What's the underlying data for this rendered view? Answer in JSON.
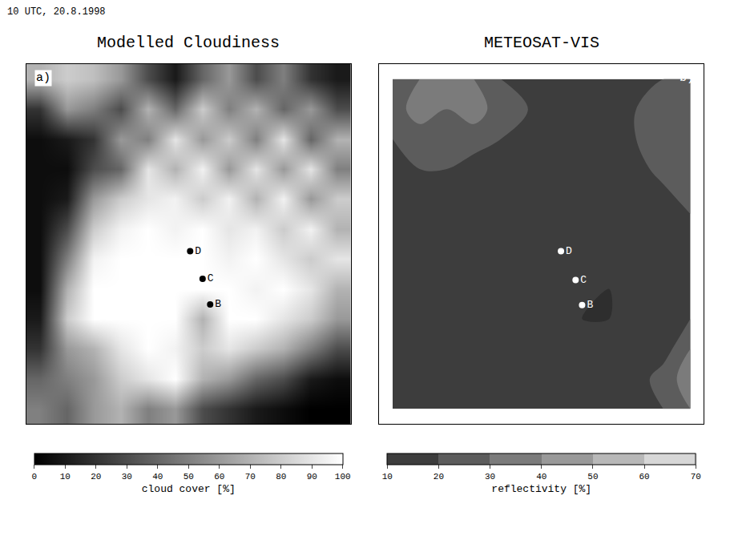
{
  "title": "10 UTC, 20.8.1998",
  "chart_data": [
    {
      "type": "heatmap",
      "title": "Modelled Cloudiness",
      "label": "a)",
      "x": [
        0.5,
        1.5,
        2.5,
        3.5,
        4.5,
        5.5,
        6.5,
        7.5,
        8.5,
        9.5,
        10.5,
        11.5
      ],
      "y": [
        11.5,
        10.5,
        9.5,
        8.5,
        7.5,
        6.5,
        5.5,
        4.5,
        3.5,
        2.5,
        1.5,
        0.5
      ],
      "z": [
        [
          70,
          80,
          75,
          60,
          30,
          10,
          40,
          60,
          30,
          50,
          20,
          10
        ],
        [
          20,
          60,
          50,
          30,
          70,
          40,
          80,
          50,
          70,
          40,
          60,
          30
        ],
        [
          5,
          10,
          20,
          60,
          50,
          90,
          60,
          80,
          50,
          90,
          40,
          70
        ],
        [
          5,
          5,
          30,
          40,
          90,
          70,
          95,
          60,
          90,
          60,
          90,
          50
        ],
        [
          5,
          10,
          60,
          80,
          90,
          95,
          80,
          95,
          70,
          95,
          60,
          80
        ],
        [
          5,
          30,
          80,
          95,
          100,
          95,
          100,
          90,
          95,
          80,
          95,
          70
        ],
        [
          5,
          50,
          95,
          100,
          100,
          100,
          100,
          95,
          100,
          90,
          80,
          90
        ],
        [
          5,
          70,
          100,
          100,
          100,
          100,
          100,
          100,
          95,
          100,
          90,
          70
        ],
        [
          10,
          80,
          100,
          100,
          100,
          100,
          70,
          100,
          100,
          90,
          80,
          60
        ],
        [
          20,
          60,
          70,
          90,
          100,
          95,
          80,
          90,
          80,
          70,
          50,
          30
        ],
        [
          40,
          50,
          60,
          80,
          90,
          100,
          70,
          60,
          40,
          30,
          10,
          5
        ],
        [
          50,
          40,
          60,
          70,
          50,
          60,
          30,
          20,
          10,
          5,
          0,
          0
        ]
      ],
      "xlim": [
        0,
        12
      ],
      "ylim": [
        0,
        12
      ],
      "tick_labels": false,
      "points": {
        "names": [
          "D",
          "C",
          "B"
        ],
        "x": [
          6.06,
          6.52,
          6.8
        ],
        "y": [
          5.76,
          4.84,
          3.98
        ]
      },
      "colorbar": {
        "title": "cloud cover [%]",
        "range": [
          0,
          100
        ],
        "ticks": [
          0,
          10,
          20,
          30,
          40,
          50,
          60,
          70,
          80,
          90,
          100
        ]
      }
    },
    {
      "type": "contour",
      "title": "METEOSAT-VIS",
      "label": "b)",
      "x": [
        0.5,
        1.5,
        2.5,
        3.5,
        4.5,
        5.5,
        6.5,
        7.5,
        8.5,
        9.5,
        10.5,
        11.5
      ],
      "y": [
        11.5,
        10.5,
        9.5,
        8.5,
        7.5,
        6.5,
        5.5,
        4.5,
        3.5,
        2.5,
        1.5,
        0.5
      ],
      "z": [
        [
          20,
          30,
          35,
          30,
          20,
          15,
          15,
          20,
          15,
          15,
          20,
          20
        ],
        [
          25,
          35,
          30,
          35,
          25,
          20,
          15,
          15,
          20,
          20,
          25,
          30
        ],
        [
          20,
          25,
          30,
          25,
          20,
          15,
          20,
          15,
          15,
          20,
          30,
          25
        ],
        [
          15,
          20,
          20,
          15,
          15,
          20,
          15,
          15,
          20,
          15,
          25,
          30
        ],
        [
          15,
          15,
          20,
          15,
          20,
          15,
          20,
          15,
          15,
          20,
          15,
          25
        ],
        [
          15,
          20,
          15,
          15,
          15,
          20,
          15,
          20,
          10,
          15,
          20,
          15
        ],
        [
          20,
          15,
          15,
          20,
          15,
          15,
          15,
          10,
          15,
          10,
          15,
          20
        ],
        [
          15,
          20,
          15,
          15,
          20,
          15,
          10,
          15,
          10,
          15,
          20,
          15
        ],
        [
          15,
          15,
          20,
          15,
          15,
          10,
          15,
          10,
          10,
          15,
          15,
          20
        ],
        [
          20,
          15,
          15,
          20,
          15,
          15,
          10,
          15,
          15,
          20,
          15,
          30
        ],
        [
          15,
          20,
          15,
          15,
          20,
          15,
          15,
          20,
          15,
          15,
          25,
          35
        ],
        [
          15,
          15,
          20,
          15,
          15,
          20,
          15,
          15,
          20,
          15,
          20,
          30
        ]
      ],
      "xlim": [
        0,
        12
      ],
      "ylim": [
        0,
        12
      ],
      "tick_labels": false,
      "points": {
        "names": [
          "D",
          "C",
          "B"
        ],
        "x": [
          6.72,
          7.26,
          7.5
        ],
        "y": [
          5.76,
          4.8,
          3.96
        ]
      },
      "colorbar": {
        "title": "reflectivity [%]",
        "range": [
          10,
          70
        ],
        "ticks": [
          10,
          20,
          30,
          40,
          50,
          60,
          70
        ]
      }
    }
  ]
}
